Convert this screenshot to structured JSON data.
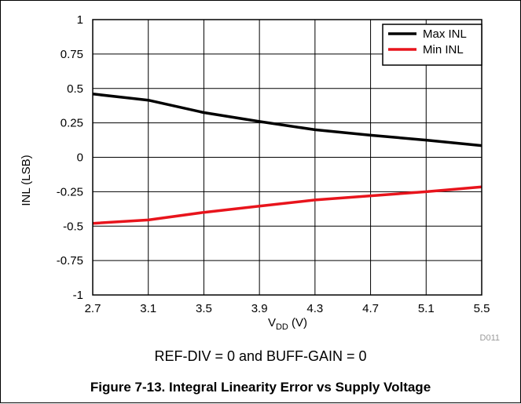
{
  "chart_data": {
    "type": "line",
    "xlabel_main": "V",
    "xlabel_sub": "DD",
    "xlabel_unit": " (V)",
    "ylabel": "INL (LSB)",
    "xlim": [
      2.7,
      5.5
    ],
    "ylim": [
      -1,
      1
    ],
    "x_ticks": [
      "2.7",
      "3.1",
      "3.5",
      "3.9",
      "4.3",
      "4.7",
      "5.1",
      "5.5"
    ],
    "y_ticks": [
      "1",
      "0.75",
      "0.5",
      "0.25",
      "0",
      "-0.25",
      "-0.5",
      "-0.75",
      "-1"
    ],
    "grid": true,
    "legend_position": "top-right",
    "series": [
      {
        "name": "Max INL",
        "color": "#000000",
        "x": [
          2.7,
          3.1,
          3.5,
          3.9,
          4.3,
          4.7,
          5.1,
          5.5
        ],
        "y": [
          0.46,
          0.415,
          0.325,
          0.26,
          0.2,
          0.16,
          0.125,
          0.085
        ]
      },
      {
        "name": "Min INL",
        "color": "#e8141c",
        "x": [
          2.7,
          3.1,
          3.5,
          3.9,
          4.3,
          4.7,
          5.1,
          5.5
        ],
        "y": [
          -0.48,
          -0.455,
          -0.4,
          -0.355,
          -0.31,
          -0.28,
          -0.25,
          -0.215
        ]
      }
    ],
    "tag": "D011"
  },
  "condition": "REF-DIV = 0 and BUFF-GAIN = 0",
  "caption": "Figure 7-13. Integral Linearity Error vs Supply Voltage"
}
